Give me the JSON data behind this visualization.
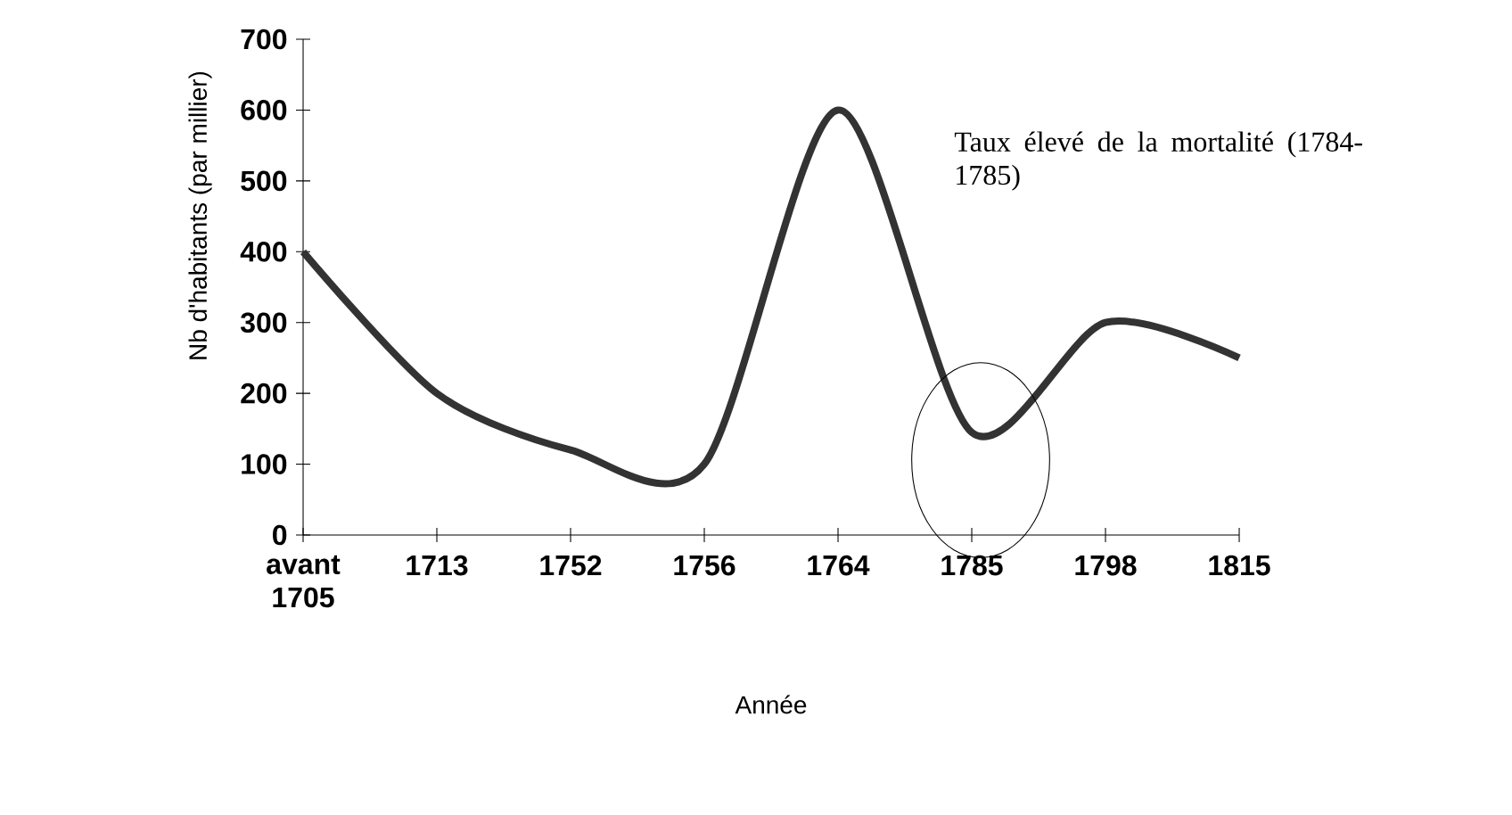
{
  "chart_data": {
    "type": "line",
    "xlabel": "Année",
    "ylabel": "Nb d'habitants (par millier)",
    "categories": [
      "avant 1705",
      "1713",
      "1752",
      "1756",
      "1764",
      "1785",
      "1798",
      "1815"
    ],
    "series": [
      {
        "color": "#333333",
        "values": [
          400,
          200,
          120,
          100,
          600,
          145,
          300,
          250
        ]
      }
    ],
    "ylim": [
      0,
      700
    ],
    "yticks": [
      0,
      100,
      200,
      300,
      400,
      500,
      600,
      700
    ],
    "annotations": [
      "Taux élevé de la mortalité (1784-1785)"
    ]
  }
}
